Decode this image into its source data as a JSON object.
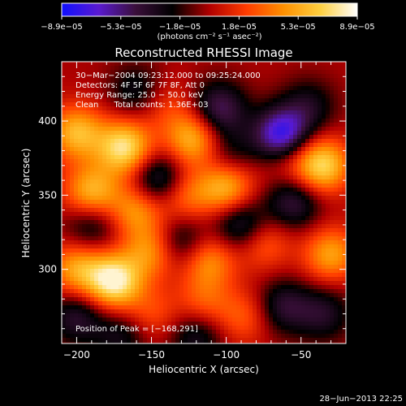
{
  "colorbar": {
    "tick_labels": [
      "−8.9e−05",
      "−5.3e−05",
      "−1.8e−05",
      "1.8e−05",
      "5.3e−05",
      "8.9e−05"
    ],
    "unit_label": "(photons cm⁻² s⁻¹ asec⁻²)",
    "colors": [
      "#1010ff",
      "#5a1ad0",
      "#3a0f3a",
      "#000000",
      "#b00000",
      "#ff3c00",
      "#ff9000",
      "#ffd040",
      "#ffffff"
    ]
  },
  "chart_data": {
    "type": "heatmap",
    "title": "Reconstructed RHESSI Image",
    "xlabel": "Heliocentric X (arcsec)",
    "ylabel": "Heliocentric Y (arcsec)",
    "xlim": [
      -210,
      -20
    ],
    "ylim": [
      250,
      440
    ],
    "x_ticks": [
      -200,
      -150,
      -100,
      -50
    ],
    "y_ticks": [
      300,
      350,
      400
    ],
    "x_tick_labels": [
      "−200",
      "−150",
      "−100",
      "−50"
    ],
    "y_tick_labels": [
      "300",
      "350",
      "400"
    ],
    "zlim": [
      -8.9e-05,
      8.9e-05
    ],
    "annotations": {
      "time_range": "30−Mar−2004 09:23:12.000 to 09:25:24.000",
      "detectors": "Detectors: 4F 5F 6F 7F 8F, Att 0",
      "energy_range": "Energy Range: 25.0 − 50.0 keV",
      "clean_counts": "Clean      Total counts: 1.36E+03",
      "peak_position": "Position of Peak = [−168,291]"
    },
    "blobs": [
      {
        "x": -175,
        "y": 292,
        "v": 1.0
      },
      {
        "x": -200,
        "y": 300,
        "v": 0.6
      },
      {
        "x": -190,
        "y": 352,
        "v": 0.7
      },
      {
        "x": -160,
        "y": 340,
        "v": 0.55
      },
      {
        "x": -150,
        "y": 312,
        "v": 0.55
      },
      {
        "x": -168,
        "y": 382,
        "v": 0.9
      },
      {
        "x": -200,
        "y": 392,
        "v": 0.7
      },
      {
        "x": -122,
        "y": 388,
        "v": 0.7
      },
      {
        "x": -128,
        "y": 350,
        "v": 0.45
      },
      {
        "x": -100,
        "y": 355,
        "v": 0.7
      },
      {
        "x": -112,
        "y": 306,
        "v": 0.55
      },
      {
        "x": -115,
        "y": 278,
        "v": 0.35
      },
      {
        "x": -60,
        "y": 376,
        "v": 0.3
      },
      {
        "x": -36,
        "y": 370,
        "v": 0.85
      },
      {
        "x": -30,
        "y": 310,
        "v": 0.6
      },
      {
        "x": -75,
        "y": 318,
        "v": 0.4
      },
      {
        "x": -88,
        "y": 268,
        "v": 0.35
      },
      {
        "x": -150,
        "y": 270,
        "v": 0.3
      },
      {
        "x": -63,
        "y": 390,
        "v": -1.0
      },
      {
        "x": -105,
        "y": 408,
        "v": -0.6
      },
      {
        "x": -145,
        "y": 360,
        "v": -0.6
      },
      {
        "x": -130,
        "y": 318,
        "v": -0.45
      },
      {
        "x": -90,
        "y": 330,
        "v": -0.55
      },
      {
        "x": -55,
        "y": 345,
        "v": -0.5
      },
      {
        "x": -190,
        "y": 330,
        "v": -0.4
      },
      {
        "x": -200,
        "y": 268,
        "v": -0.45
      },
      {
        "x": -45,
        "y": 410,
        "v": -0.35
      },
      {
        "x": -160,
        "y": 420,
        "v": -0.35
      },
      {
        "x": -62,
        "y": 275,
        "v": -0.45
      },
      {
        "x": -120,
        "y": 255,
        "v": -0.4
      },
      {
        "x": -35,
        "y": 270,
        "v": -0.4
      },
      {
        "x": -170,
        "y": 255,
        "v": -0.35
      },
      {
        "x": -98,
        "y": 378,
        "v": -0.3
      },
      {
        "x": -140,
        "y": 410,
        "v": 0.25
      }
    ]
  },
  "footer": {
    "timestamp": "28−Jun−2013 22:25"
  }
}
